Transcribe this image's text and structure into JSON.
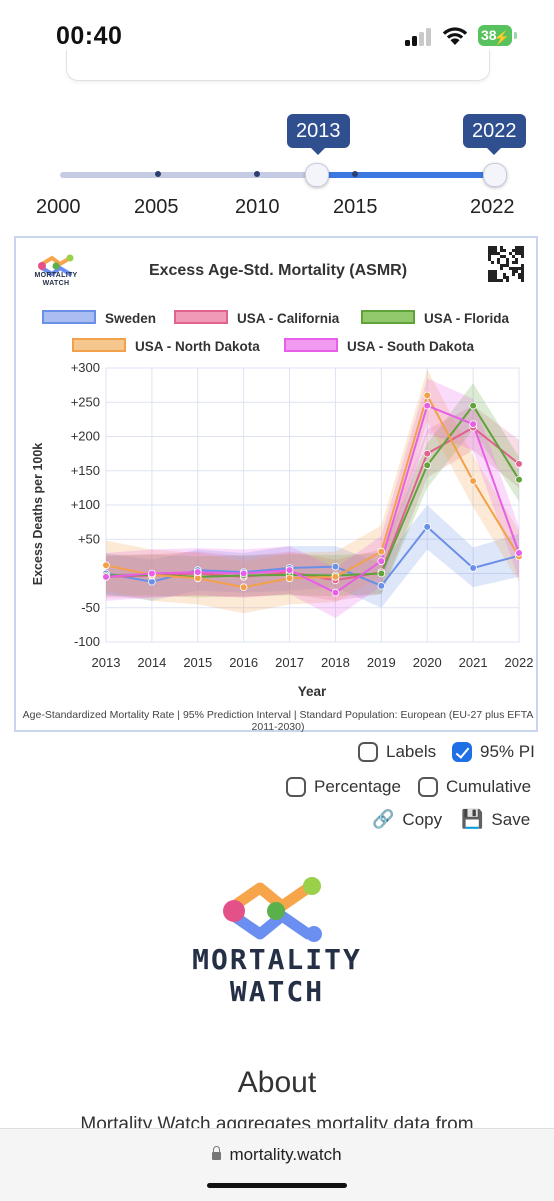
{
  "status_bar": {
    "time": "00:40",
    "battery": "38"
  },
  "slider": {
    "start_value": "2013",
    "end_value": "2022",
    "labels": [
      "2000",
      "2005",
      "2010",
      "2015",
      "2022"
    ]
  },
  "chart": {
    "logo_text_line1": "MORTALITY",
    "logo_text_line2": "WATCH",
    "footer": "Age-Standardized Mortality Rate | 95% Prediction Interval | Standard Population: European (EU-27 plus EFTA 2011-2030)"
  },
  "chart_data": {
    "type": "line",
    "title": "Excess Age-Std. Mortality (ASMR)",
    "xlabel": "Year",
    "ylabel": "Excess Deaths per 100k",
    "x": [
      2013,
      2014,
      2015,
      2016,
      2017,
      2018,
      2019,
      2020,
      2021,
      2022
    ],
    "yticks": [
      "+300",
      "+250",
      "+200",
      "+150",
      "+100",
      "+50",
      "-50",
      "-100"
    ],
    "ylim": [
      -100,
      300
    ],
    "grid": true,
    "legend_position": "top",
    "prediction_interval": "95%",
    "series": [
      {
        "name": "Sweden",
        "color": "#6a8fe6",
        "values": [
          0,
          -12,
          5,
          2,
          8,
          10,
          -18,
          68,
          8,
          26
        ],
        "pi_lower": [
          -30,
          -40,
          -25,
          -28,
          -25,
          -20,
          -50,
          35,
          -20,
          -5
        ],
        "pi_upper": [
          30,
          20,
          35,
          30,
          40,
          40,
          15,
          100,
          38,
          58
        ]
      },
      {
        "name": "USA - California",
        "color": "#e0628e",
        "values": [
          -5,
          -3,
          0,
          -5,
          2,
          -10,
          2,
          175,
          213,
          160
        ],
        "pi_lower": [
          -35,
          -35,
          -32,
          -35,
          -30,
          -40,
          -30,
          140,
          180,
          125
        ],
        "pi_upper": [
          25,
          28,
          32,
          25,
          32,
          20,
          35,
          210,
          245,
          195
        ]
      },
      {
        "name": "USA - Florida",
        "color": "#5fa33a",
        "values": [
          -3,
          -2,
          -5,
          -3,
          -2,
          -3,
          0,
          158,
          245,
          137
        ],
        "pi_lower": [
          -33,
          -32,
          -35,
          -33,
          -32,
          -33,
          -30,
          125,
          210,
          105
        ],
        "pi_upper": [
          27,
          28,
          25,
          27,
          28,
          27,
          30,
          190,
          278,
          170
        ]
      },
      {
        "name": "USA - North Dakota",
        "color": "#f2a14a",
        "values": [
          12,
          -2,
          -7,
          -20,
          -7,
          -5,
          32,
          260,
          135,
          25
        ],
        "pi_lower": [
          -25,
          -40,
          -45,
          -58,
          -45,
          -42,
          -5,
          222,
          97,
          -12
        ],
        "pi_upper": [
          48,
          35,
          30,
          18,
          30,
          32,
          70,
          298,
          172,
          62
        ]
      },
      {
        "name": "USA - South Dakota",
        "color": "#e65fe6",
        "values": [
          -5,
          0,
          2,
          0,
          5,
          -28,
          18,
          245,
          218,
          30
        ],
        "pi_lower": [
          -40,
          -35,
          -32,
          -35,
          -30,
          -65,
          -18,
          205,
          180,
          -8
        ],
        "pi_upper": [
          30,
          35,
          37,
          35,
          40,
          8,
          55,
          285,
          255,
          68
        ]
      }
    ]
  },
  "options": {
    "labels": "Labels",
    "pi": "95% PI",
    "percentage": "Percentage",
    "cumulative": "Cumulative",
    "copy": "Copy",
    "save": "Save"
  },
  "footer_logo": {
    "line1": "MORTALITY",
    "line2": "WATCH"
  },
  "about": {
    "heading": "About",
    "body": "Mortality Watch aggregates mortality data from"
  },
  "url_bar": {
    "url": "mortality.watch"
  }
}
